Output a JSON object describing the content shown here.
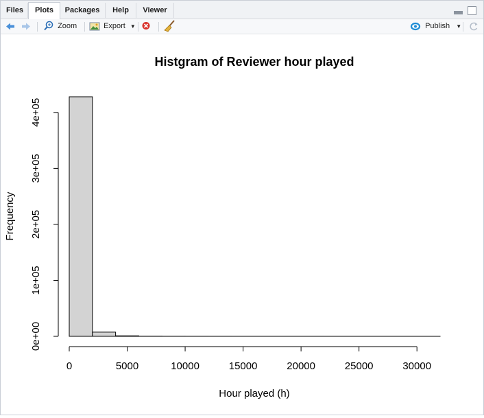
{
  "tabs": [
    {
      "label": "Files"
    },
    {
      "label": "Plots"
    },
    {
      "label": "Packages"
    },
    {
      "label": "Help"
    },
    {
      "label": "Viewer"
    }
  ],
  "toolbar": {
    "zoom_label": "Zoom",
    "export_label": "Export",
    "publish_label": "Publish"
  },
  "icons": {
    "back": "arrow-left-icon",
    "forward": "arrow-right-icon",
    "zoom": "magnifier-icon",
    "export": "image-export-icon",
    "remove": "remove-plot-icon",
    "clear": "broom-icon",
    "publish": "publish-icon",
    "refresh": "refresh-icon"
  },
  "colors": {
    "bar_fill": "#d3d3d3",
    "bar_stroke": "#000000",
    "publish_accent": "#1f8dd6",
    "back_arrow": "#4a90d9",
    "remove_red": "#d9332b"
  },
  "chart_data": {
    "type": "bar",
    "title": "Histgram of Reviewer hour played",
    "xlabel": "Hour played (h)",
    "ylabel": "Frequency",
    "bin_width": 2000,
    "bins": [
      {
        "start": 0,
        "end": 2000,
        "count": 428000
      },
      {
        "start": 2000,
        "end": 4000,
        "count": 7500
      },
      {
        "start": 4000,
        "end": 6000,
        "count": 900
      },
      {
        "start": 6000,
        "end": 8000,
        "count": 200
      },
      {
        "start": 8000,
        "end": 10000,
        "count": 80
      },
      {
        "start": 10000,
        "end": 12000,
        "count": 40
      },
      {
        "start": 12000,
        "end": 14000,
        "count": 20
      },
      {
        "start": 14000,
        "end": 16000,
        "count": 10
      },
      {
        "start": 16000,
        "end": 18000,
        "count": 6
      },
      {
        "start": 18000,
        "end": 20000,
        "count": 4
      },
      {
        "start": 20000,
        "end": 22000,
        "count": 3
      },
      {
        "start": 22000,
        "end": 24000,
        "count": 2
      },
      {
        "start": 24000,
        "end": 26000,
        "count": 2
      },
      {
        "start": 26000,
        "end": 28000,
        "count": 1
      },
      {
        "start": 28000,
        "end": 30000,
        "count": 1
      },
      {
        "start": 30000,
        "end": 32000,
        "count": 1
      }
    ],
    "x_ticks": [
      0,
      5000,
      10000,
      15000,
      20000,
      25000,
      30000
    ],
    "x_tick_labels": [
      "0",
      "5000",
      "10000",
      "15000",
      "20000",
      "25000",
      "30000"
    ],
    "y_ticks": [
      0,
      100000,
      200000,
      300000,
      400000
    ],
    "y_tick_labels": [
      "0e+00",
      "1e+05",
      "2e+05",
      "3e+05",
      "4e+05"
    ],
    "xlim": [
      0,
      32000
    ],
    "ylim": [
      0,
      428000
    ],
    "grid": false,
    "legend": "none"
  }
}
